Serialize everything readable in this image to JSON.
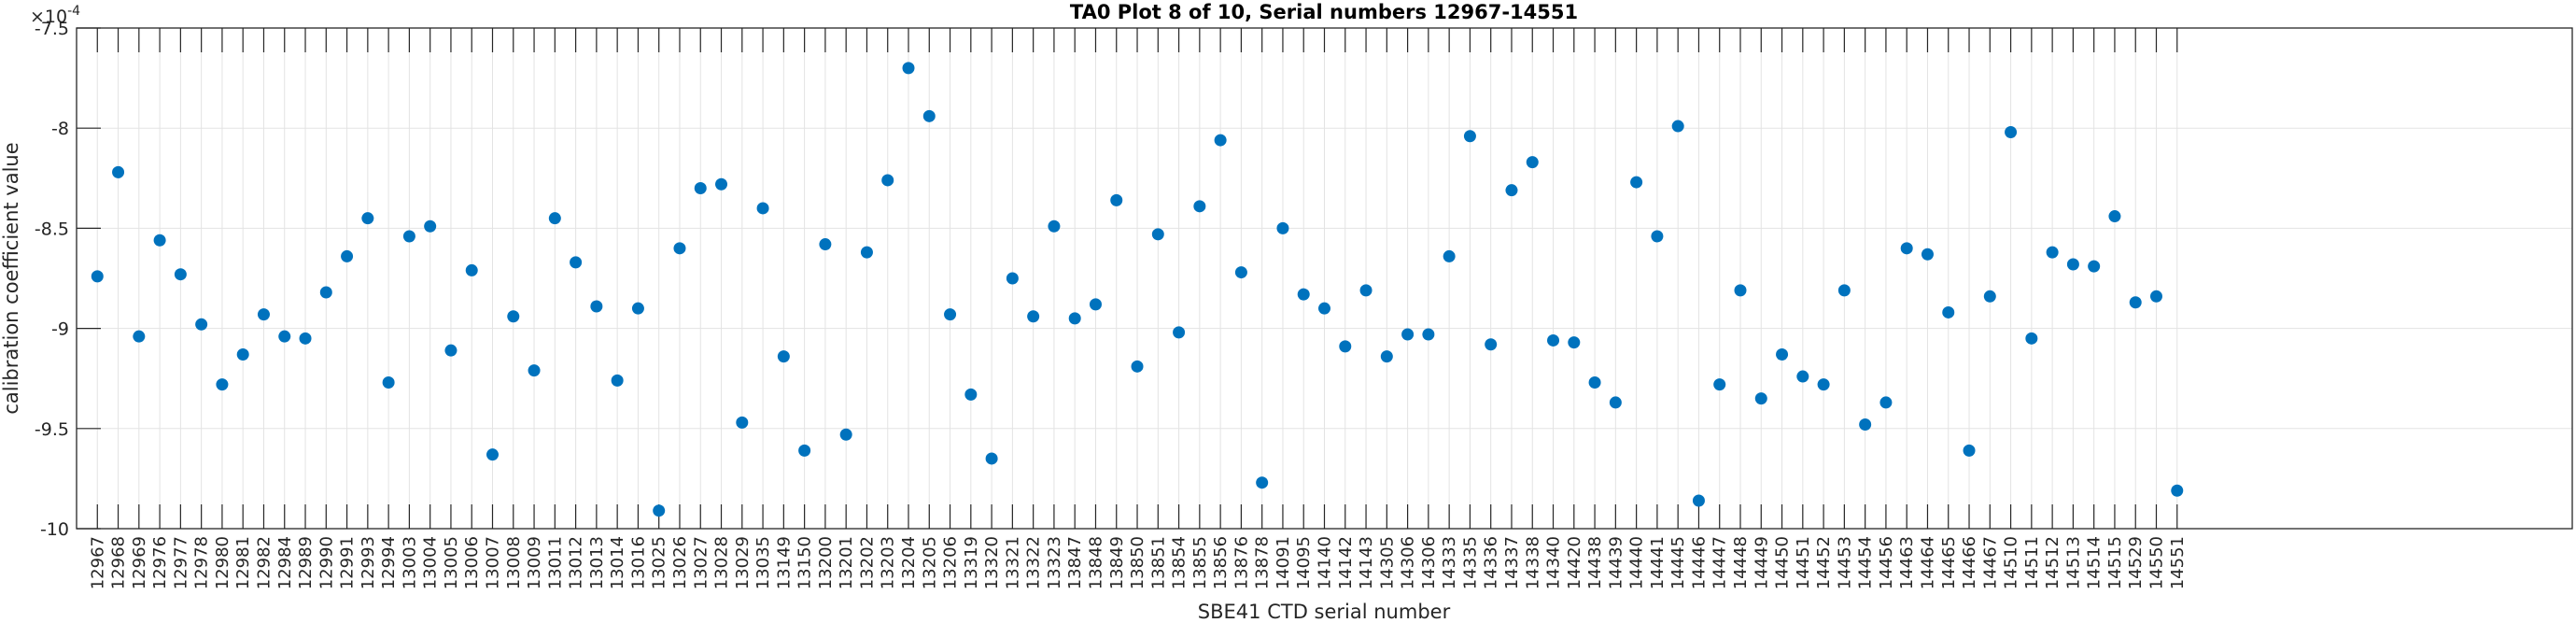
{
  "chart_data": {
    "type": "scatter",
    "title": "TA0 Plot 8 of 10, Serial numbers 12967-14551",
    "xlabel": "SBE41 CTD serial number",
    "ylabel": "calibration coefficient value",
    "y_exponent_label": "×10",
    "y_exponent_power": "-4",
    "ylim": [
      -10,
      -7.5
    ],
    "xlim_index": [
      0,
      120
    ],
    "grid": true,
    "marker_color": "#0072BD",
    "yticks": [
      -10,
      -9.5,
      -9,
      -8.5,
      -8,
      -7.5
    ],
    "ytick_labels": [
      "-10",
      "-9.5",
      "-9",
      "-8.5",
      "-8",
      "-7.5"
    ],
    "categories": [
      "12967",
      "12968",
      "12969",
      "12976",
      "12977",
      "12978",
      "12980",
      "12981",
      "12982",
      "12984",
      "12989",
      "12990",
      "12991",
      "12993",
      "12994",
      "13003",
      "13004",
      "13005",
      "13006",
      "13007",
      "13008",
      "13009",
      "13011",
      "13012",
      "13013",
      "13014",
      "13016",
      "13025",
      "13026",
      "13027",
      "13028",
      "13029",
      "13035",
      "13149",
      "13150",
      "13200",
      "13201",
      "13202",
      "13203",
      "13204",
      "13205",
      "13206",
      "13319",
      "13320",
      "13321",
      "13322",
      "13323",
      "13847",
      "13848",
      "13849",
      "13850",
      "13851",
      "13854",
      "13855",
      "13856",
      "13876",
      "13878",
      "14091",
      "14095",
      "14140",
      "14142",
      "14143",
      "14305",
      "14306",
      "14306",
      "14333",
      "14335",
      "14336",
      "14337",
      "14338",
      "14340",
      "14420",
      "14438",
      "14439",
      "14440",
      "14441",
      "14445",
      "14446",
      "14447",
      "14448",
      "14449",
      "14450",
      "14451",
      "14452",
      "14453",
      "14454",
      "14456",
      "14463",
      "14464",
      "14465",
      "14466",
      "14467",
      "14510",
      "14511",
      "14512",
      "14513",
      "14514",
      "14515",
      "14529",
      "14550",
      "14551"
    ],
    "values": [
      -8.74,
      -8.22,
      -9.04,
      -8.56,
      -8.73,
      -8.98,
      -9.28,
      -9.13,
      -8.93,
      -9.04,
      -9.05,
      -8.82,
      -8.64,
      -8.45,
      -9.27,
      -8.54,
      -8.49,
      -9.11,
      -8.71,
      -9.63,
      -8.94,
      -9.21,
      -8.45,
      -8.67,
      -8.89,
      -9.26,
      -8.9,
      -9.91,
      -8.6,
      -8.3,
      -8.28,
      -9.47,
      -8.4,
      -9.14,
      -9.61,
      -8.58,
      -9.53,
      -8.62,
      -8.26,
      -7.7,
      -7.94,
      -8.93,
      -9.33,
      -9.65,
      -8.75,
      -8.94,
      -8.49,
      -8.95,
      -8.88,
      -8.36,
      -9.19,
      -8.53,
      -9.02,
      -8.39,
      -8.06,
      -8.72,
      -9.77,
      -8.5,
      -8.83,
      -8.9,
      -9.09,
      -8.81,
      -9.14,
      -9.03,
      -9.03,
      -8.64,
      -8.04,
      -9.08,
      -8.31,
      -8.17,
      -9.06,
      -9.07,
      -9.27,
      -9.37,
      -8.27,
      -8.54,
      -7.99,
      -9.86,
      -9.28,
      -8.81,
      -9.35,
      -9.13,
      -9.24,
      -9.28,
      -8.81,
      -9.48,
      -9.37,
      -8.6,
      -8.63,
      -8.92,
      -9.61,
      -8.84,
      -8.02,
      -9.05,
      -8.62,
      -8.68,
      -8.69,
      -8.44,
      -8.87,
      -8.84,
      -9.81
    ]
  }
}
